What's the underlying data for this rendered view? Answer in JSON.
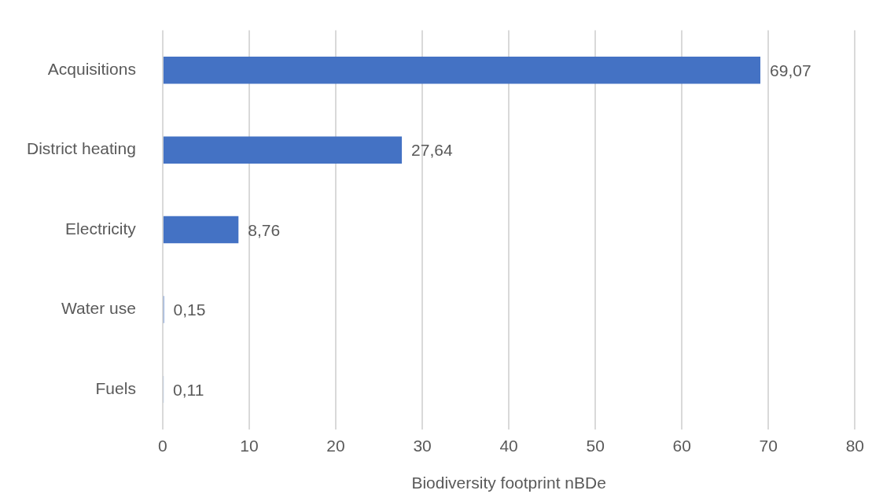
{
  "chart_data": {
    "type": "bar",
    "orientation": "horizontal",
    "categories": [
      "Acquisitions",
      "District heating",
      "Electricity",
      "Water use",
      "Fuels"
    ],
    "values": [
      69.07,
      27.64,
      8.76,
      0.15,
      0.11
    ],
    "value_labels": [
      "69,07",
      "27,64",
      "8,76",
      "0,15",
      "0,11"
    ],
    "color": "#4472c4",
    "xlim": [
      0,
      80
    ],
    "xticks": [
      0,
      10,
      20,
      30,
      40,
      50,
      60,
      70,
      80
    ],
    "xlabel": "Biodiversity footprint nBDe",
    "grid": "x"
  }
}
